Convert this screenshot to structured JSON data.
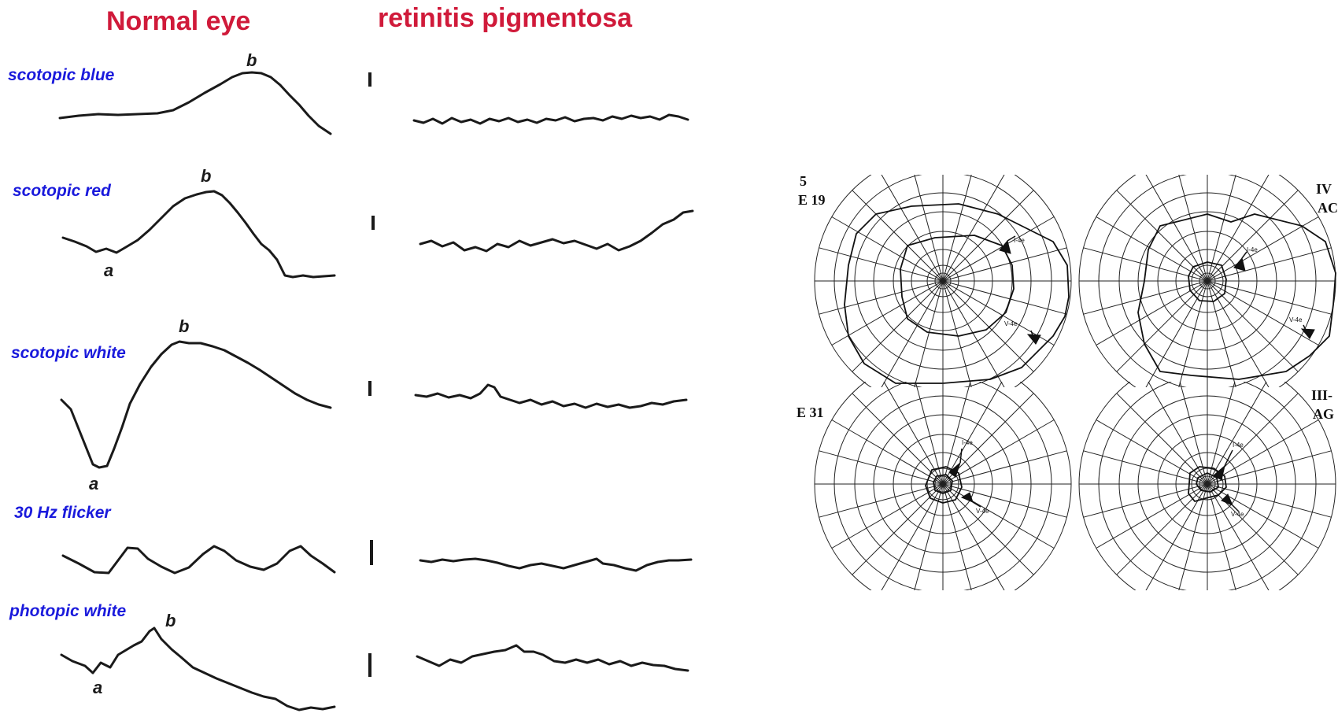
{
  "colors": {
    "title": "#d01a3a",
    "row_label": "#1a1adc",
    "trace": "#1a1a1a"
  },
  "titles": {
    "normal": "Normal eye",
    "rp": "retinitis pigmentosa"
  },
  "rows": [
    {
      "label": "scotopic blue",
      "peaks": [
        {
          "text": "b"
        }
      ]
    },
    {
      "label": "scotopic red",
      "peaks": [
        {
          "text": "b"
        },
        {
          "text": "a"
        }
      ]
    },
    {
      "label": "scotopic white",
      "peaks": [
        {
          "text": "b"
        },
        {
          "text": "a"
        }
      ]
    },
    {
      "label": "30 Hz flicker",
      "peaks": []
    },
    {
      "label": "photopic white",
      "peaks": [
        {
          "text": "b"
        },
        {
          "text": "a"
        }
      ]
    }
  ],
  "visual_fields": {
    "side_labels": {
      "top_left_1": "5",
      "top_left_2": "E 19",
      "top_right_1": "IV",
      "top_right_2": "AC",
      "bottom_left": "E 31",
      "bottom_right_1": "III-",
      "bottom_right_2": "AG"
    },
    "isopters": {
      "inner": "I-4e",
      "outer": "V-4e"
    }
  }
}
